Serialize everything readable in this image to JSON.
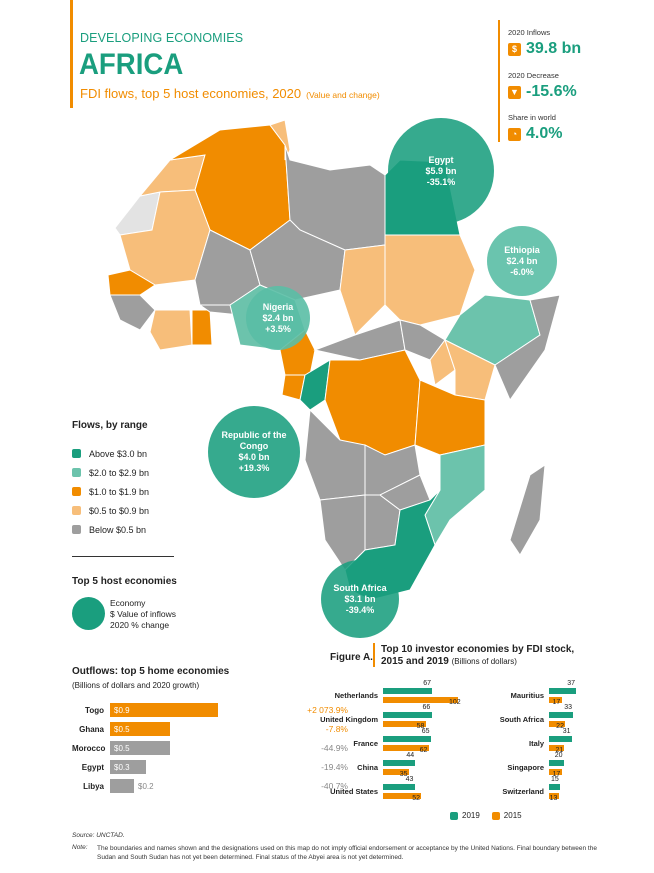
{
  "header": {
    "region": "DEVELOPING ECONOMIES",
    "country": "AFRICA",
    "subtitle": "FDI flows, top 5 host economies, 2020",
    "subtitle_note": "(Value and change)"
  },
  "kpis": [
    {
      "label": "2020 Inflows",
      "icon": "dollar-icon",
      "icon_glyph": "$",
      "value": "39.8 bn"
    },
    {
      "label": "2020 Decrease",
      "icon": "down-arrow-icon",
      "icon_glyph": "▼",
      "value": "-15.6%"
    },
    {
      "label": "Share in world",
      "icon": "pie-icon",
      "icon_glyph": "◔",
      "value": "4.0%"
    }
  ],
  "colors": {
    "above_3": "#1A9E7E",
    "r2_3": "#6CC3AC",
    "r1_2": "#F18C00",
    "r05_1": "#F7BE7A",
    "below_05": "#9E9E9E",
    "no_data": "#E3E3E3"
  },
  "map_bubbles": [
    {
      "name": "Egypt",
      "value": "$5.9 bn",
      "change": "-35.1%"
    },
    {
      "name": "Ethiopia",
      "value": "$2.4 bn",
      "change": "-6.0%"
    },
    {
      "name": "Nigeria",
      "value": "$2.4 bn",
      "change": "+3.5%"
    },
    {
      "name": "Republic of the Congo",
      "value": "$4.0 bn",
      "change": "+19.3%"
    },
    {
      "name": "South Africa",
      "value": "$3.1 bn",
      "change": "-39.4%"
    }
  ],
  "legend": {
    "title": "Flows, by range",
    "items": [
      {
        "label": "Above $3.0 bn",
        "color": "#1A9E7E"
      },
      {
        "label": "$2.0 to $2.9 bn",
        "color": "#6CC3AC"
      },
      {
        "label": "$1.0 to $1.9 bn",
        "color": "#F18C00"
      },
      {
        "label": "$0.5 to $0.9 bn",
        "color": "#F7BE7A"
      },
      {
        "label": "Below $0.5 bn",
        "color": "#9E9E9E"
      }
    ]
  },
  "top5": {
    "title": "Top 5 host economies",
    "line1": "Economy",
    "line2": "$ Value of inflows",
    "line3": "2020 % change"
  },
  "outflows": {
    "title": "Outflows: top 5 home economies",
    "subtitle": "(Billions of dollars and 2020 growth)",
    "rows": [
      {
        "name": "Togo",
        "value": "$0.9",
        "amount": 0.9,
        "change": "+2 073.9%",
        "color": "#F18C00"
      },
      {
        "name": "Ghana",
        "value": "$0.5",
        "amount": 0.5,
        "change": "-7.8%",
        "color": "#F18C00"
      },
      {
        "name": "Morocco",
        "value": "$0.5",
        "amount": 0.5,
        "change": "-44.9%",
        "color": "#9E9E9E"
      },
      {
        "name": "Egypt",
        "value": "$0.3",
        "amount": 0.3,
        "change": "-19.4%",
        "color": "#9E9E9E"
      },
      {
        "name": "Libya",
        "value": "$0.2",
        "amount": 0.2,
        "change": "-40.7%",
        "color": "#9E9E9E"
      }
    ]
  },
  "figure": {
    "label": "Figure A.",
    "title": "Top 10 investor economies by FDI stock,",
    "title2": "2015 and 2019",
    "title_note": "(Billions of dollars)",
    "legend_2019": "2019",
    "legend_2015": "2015"
  },
  "chart_data": {
    "type": "bar",
    "title": "Top 10 investor economies by FDI stock, 2015 and 2019",
    "categories": [
      "Netherlands",
      "United Kingdom",
      "France",
      "China",
      "United States",
      "Mauritius",
      "South Africa",
      "Italy",
      "Singapore",
      "Switzerland"
    ],
    "series": [
      {
        "name": "2019",
        "color": "#1A9E7E",
        "values": [
          67,
          66,
          65,
          44,
          43,
          37,
          33,
          31,
          20,
          15
        ]
      },
      {
        "name": "2015",
        "color": "#F18C00",
        "values": [
          102,
          58,
          62,
          35,
          52,
          17,
          22,
          21,
          17,
          13
        ]
      }
    ]
  },
  "footer": {
    "source": "Source: UNCTAD.",
    "note_label": "Note:",
    "note": "The boundaries and names shown and the designations used on this map do not imply official endorsement or acceptance by the United Nations. Final boundary between the Sudan and South Sudan has not yet been determined. Final status of the Abyei area is not yet determined."
  }
}
